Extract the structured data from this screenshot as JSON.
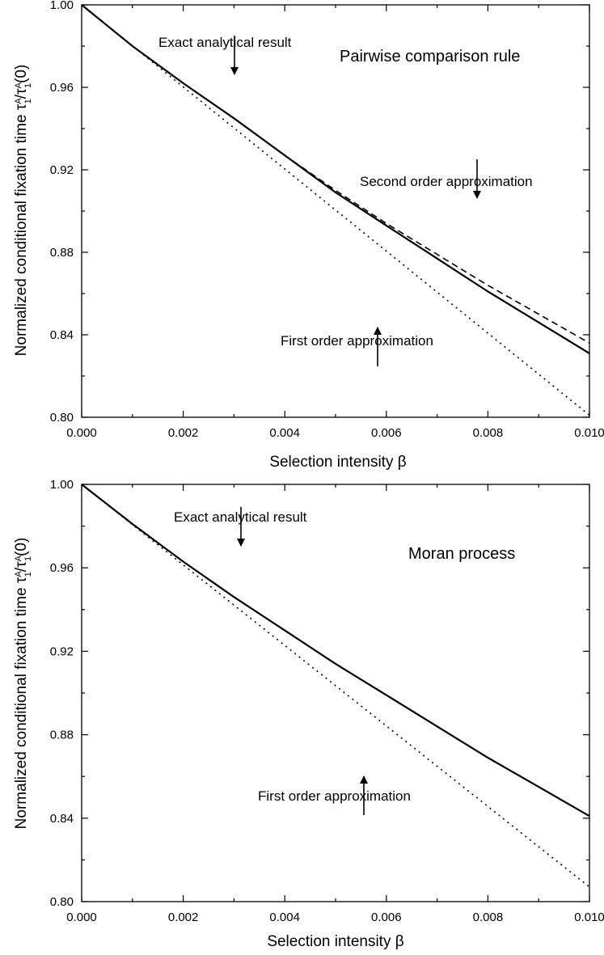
{
  "chart_data": [
    {
      "type": "line",
      "title": "Pairwise comparison rule",
      "xlabel": "Selection intensity β",
      "ylabel_main": "Normalized conditional fixation time τ",
      "ylabel_super1": "A",
      "ylabel_sub1": "1",
      "ylabel_slash": "/",
      "ylabel_tau": "τ",
      "ylabel_super2": "A",
      "ylabel_sub2": "1",
      "ylabel_tail": "(0)",
      "xlim": [
        0.0,
        0.01
      ],
      "ylim": [
        0.8,
        1.0
      ],
      "xticks": [
        "0.000",
        "0.002",
        "0.004",
        "0.006",
        "0.008",
        "0.010"
      ],
      "yticks": [
        "0.80",
        "0.84",
        "0.88",
        "0.92",
        "0.96",
        "1.00"
      ],
      "series": [
        {
          "name": "Exact analytical result",
          "style": "solid",
          "x": [
            0,
            0.001,
            0.002,
            0.003,
            0.004,
            0.005,
            0.006,
            0.007,
            0.008,
            0.009,
            0.01
          ],
          "y": [
            1.0,
            0.98,
            0.962,
            0.945,
            0.927,
            0.909,
            0.893,
            0.877,
            0.861,
            0.846,
            0.831
          ]
        },
        {
          "name": "Second order approximation",
          "style": "dashed",
          "x": [
            0,
            0.001,
            0.002,
            0.003,
            0.004,
            0.005,
            0.006,
            0.007,
            0.008,
            0.009,
            0.01
          ],
          "y": [
            1.0,
            0.98,
            0.962,
            0.945,
            0.927,
            0.91,
            0.894,
            0.879,
            0.864,
            0.85,
            0.836
          ]
        },
        {
          "name": "First order approximation",
          "style": "dotted",
          "x": [
            0,
            0.01
          ],
          "y": [
            1.0,
            0.801
          ]
        }
      ],
      "annotations": [
        {
          "text": "Exact analytical result",
          "target_x": 0.0029,
          "target_y": 0.946
        },
        {
          "text": "Second order approximation",
          "target_x": 0.0078,
          "target_y": 0.866
        },
        {
          "text": "First order approximation",
          "target_x": 0.0058,
          "target_y": 0.885
        }
      ]
    },
    {
      "type": "line",
      "title": "Moran process",
      "xlabel": "Selection intensity β",
      "ylabel_main": "Normalized conditional fixation time τ",
      "ylabel_super1": "A",
      "ylabel_sub1": "1",
      "ylabel_slash": "/",
      "ylabel_tau": "τ",
      "ylabel_super2": "A",
      "ylabel_sub2": "1",
      "ylabel_tail": "(0)",
      "xlim": [
        0.0,
        0.01
      ],
      "ylim": [
        0.8,
        1.0
      ],
      "xticks": [
        "0.000",
        "0.002",
        "0.004",
        "0.006",
        "0.008",
        "0.010"
      ],
      "yticks": [
        "0.80",
        "0.84",
        "0.88",
        "0.92",
        "0.96",
        "1.00"
      ],
      "series": [
        {
          "name": "Exact analytical result",
          "style": "solid",
          "x": [
            0,
            0.001,
            0.002,
            0.003,
            0.004,
            0.005,
            0.006,
            0.007,
            0.008,
            0.009,
            0.01
          ],
          "y": [
            1.0,
            0.981,
            0.963,
            0.946,
            0.93,
            0.914,
            0.899,
            0.884,
            0.869,
            0.855,
            0.841
          ]
        },
        {
          "name": "First order approximation",
          "style": "dotted",
          "x": [
            0,
            0.01
          ],
          "y": [
            1.0,
            0.807
          ]
        }
      ],
      "annotations": [
        {
          "text": "Exact analytical result",
          "target_x": 0.0031,
          "target_y": 0.95
        },
        {
          "text": "First order approximation",
          "target_x": 0.0056,
          "target_y": 0.893
        }
      ]
    }
  ]
}
